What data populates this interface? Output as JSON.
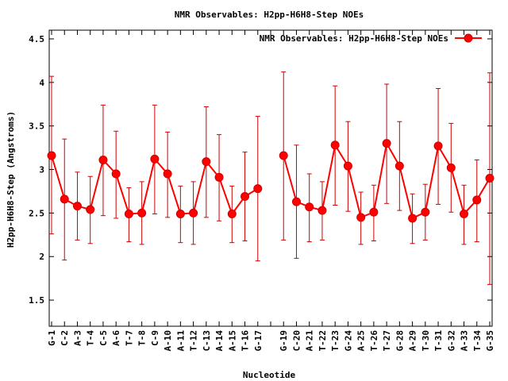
{
  "chart_data": {
    "type": "line",
    "title": "NMR Observables: H2pp-H6H8-Step NOEs",
    "xlabel": "Nucleotide",
    "ylabel": "H2pp-H6H8-Step (Angstroms)",
    "ylim": [
      1.2,
      4.6
    ],
    "yticks": [
      1.5,
      2,
      2.5,
      3,
      3.5,
      4,
      4.5
    ],
    "grid": false,
    "legend_position": "top-right",
    "series_color": "#ff0000",
    "error_color": "#cc0000",
    "categories": [
      "G-1",
      "C-2",
      "A-3",
      "T-4",
      "C-5",
      "A-6",
      "T-7",
      "T-8",
      "C-9",
      "A-10",
      "A-11",
      "T-12",
      "C-13",
      "A-14",
      "A-15",
      "T-16",
      "G-17",
      "",
      "G-19",
      "C-20",
      "A-21",
      "T-22",
      "T-23",
      "G-24",
      "A-25",
      "T-26",
      "T-27",
      "G-28",
      "A-29",
      "T-30",
      "T-31",
      "G-32",
      "A-33",
      "T-34",
      "G-35"
    ],
    "series": [
      {
        "name": "NMR Observables: H2pp-H6H8-Step NOEs",
        "values": [
          3.16,
          2.66,
          2.58,
          2.54,
          3.11,
          2.95,
          2.49,
          2.5,
          3.12,
          2.95,
          2.49,
          2.5,
          3.09,
          2.91,
          2.49,
          2.69,
          2.78,
          null,
          3.16,
          2.63,
          2.57,
          2.53,
          3.28,
          3.04,
          2.45,
          2.51,
          3.3,
          3.04,
          2.44,
          2.51,
          3.27,
          3.02,
          2.49,
          2.65,
          2.9
        ],
        "error_low": [
          2.26,
          1.96,
          2.19,
          2.15,
          2.47,
          2.44,
          2.17,
          2.14,
          2.49,
          2.45,
          2.16,
          2.14,
          2.45,
          2.41,
          2.16,
          2.18,
          1.95,
          null,
          2.19,
          1.98,
          2.17,
          2.19,
          2.59,
          2.52,
          2.14,
          2.18,
          2.61,
          2.53,
          2.15,
          2.19,
          2.6,
          2.51,
          2.14,
          2.17,
          1.68
        ],
        "error_high": [
          4.07,
          3.35,
          2.97,
          2.92,
          3.74,
          3.44,
          2.79,
          2.86,
          3.74,
          3.43,
          2.81,
          2.86,
          3.72,
          3.4,
          2.81,
          3.2,
          3.61,
          null,
          4.12,
          3.28,
          2.95,
          2.86,
          3.96,
          3.55,
          2.74,
          2.82,
          3.98,
          3.55,
          2.72,
          2.83,
          3.93,
          3.53,
          2.82,
          3.11,
          4.11
        ]
      }
    ]
  }
}
